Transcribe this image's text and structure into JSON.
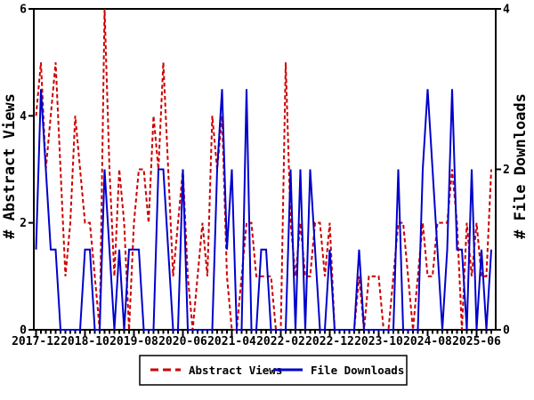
{
  "chart_data": {
    "type": "line",
    "title": "",
    "x_axis": {
      "start": "2017-12",
      "step_months": 1,
      "points_count": 94,
      "tick_positions": [
        0,
        10,
        20,
        30,
        40,
        50,
        60,
        70,
        80,
        90
      ],
      "tick_labels": [
        "2017-12",
        "2018-10",
        "2019-08",
        "2020-06",
        "2021-04",
        "2022-02",
        "2022-12",
        "2023-10",
        "2024-08",
        "2025-06"
      ]
    },
    "y_left": {
      "label": "# Abstract Views",
      "min": 0,
      "max": 6,
      "ticks": [
        0,
        2,
        4,
        6
      ]
    },
    "y_right": {
      "label": "# File Downloads",
      "min": 0,
      "max": 4,
      "ticks": [
        0,
        2,
        4
      ]
    },
    "grid": "off",
    "legend": {
      "position": "bottom"
    },
    "series": [
      {
        "name": "Abstract Views",
        "axis": "left",
        "color": "#cc0000",
        "style": "dashed",
        "values": [
          4,
          5,
          3,
          4,
          5,
          3,
          1,
          2,
          4,
          3,
          2,
          2,
          1,
          0,
          6,
          3,
          1,
          3,
          2,
          0,
          2,
          3,
          3,
          2,
          4,
          3,
          5,
          3,
          1,
          2,
          3,
          1,
          0,
          1,
          2,
          1,
          4,
          3,
          4,
          1,
          0,
          0,
          1,
          2,
          2,
          1,
          1,
          1,
          1,
          0,
          0,
          5,
          2,
          1,
          2,
          1,
          1,
          2,
          2,
          1,
          2,
          0,
          0,
          0,
          0,
          0,
          1,
          0,
          1,
          1,
          1,
          0,
          0,
          1,
          2,
          2,
          1,
          0,
          1,
          2,
          1,
          1,
          2,
          2,
          2,
          3,
          2,
          0,
          2,
          1,
          2,
          1,
          1,
          3
        ]
      },
      {
        "name": "File Downloads",
        "axis": "right",
        "color": "#0000cc",
        "style": "solid",
        "values": [
          1,
          3,
          2,
          1,
          1,
          0,
          0,
          0,
          0,
          0,
          1,
          1,
          0,
          0,
          2,
          1,
          0,
          1,
          0,
          1,
          1,
          1,
          0,
          0,
          0,
          2,
          2,
          1,
          0,
          0,
          2,
          0,
          0,
          0,
          0,
          0,
          0,
          2,
          3,
          1,
          2,
          0,
          0,
          3,
          0,
          0,
          1,
          1,
          0,
          0,
          0,
          0,
          2,
          0,
          2,
          0,
          2,
          1,
          0,
          0,
          1,
          0,
          0,
          0,
          0,
          0,
          1,
          0,
          0,
          0,
          0,
          0,
          0,
          0,
          2,
          0,
          0,
          0,
          0,
          2,
          3,
          2,
          1,
          0,
          1,
          3,
          1,
          1,
          0,
          2,
          0,
          1,
          0,
          1
        ]
      }
    ],
    "frame_color": "#000000",
    "background_color": "#ffffff"
  }
}
